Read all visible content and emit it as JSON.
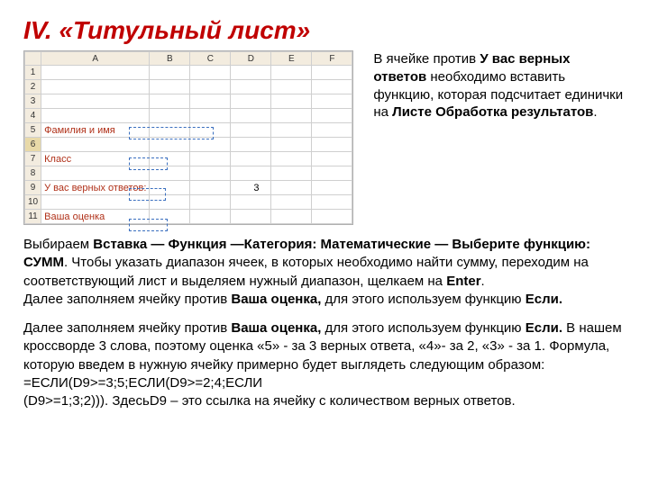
{
  "title": "IV.  «Титульный лист»",
  "sheet": {
    "cols": [
      "",
      "A",
      "B",
      "C",
      "D",
      "E",
      "F"
    ],
    "rows": [
      "1",
      "2",
      "3",
      "4",
      "5",
      "6",
      "7",
      "8",
      "9",
      "10",
      "11"
    ],
    "selected_row": "6",
    "labels": {
      "r5": "Фамилия и имя",
      "r7": "Класс",
      "r9": "У вас верных ответов:",
      "r11": "Ваша оценка"
    },
    "d9_value": "3",
    "dash_boxes": [
      {
        "top_row": 5,
        "left_col": 3,
        "rows": 1,
        "cols": 2.1
      },
      {
        "top_row": 7,
        "left_col": 3,
        "rows": 1,
        "cols": 1
      },
      {
        "top_row": 9,
        "left_col": 3,
        "rows": 1,
        "cols": 0.95
      },
      {
        "top_row": 11,
        "left_col": 3,
        "rows": 1,
        "cols": 1
      }
    ]
  },
  "right_text": {
    "p1a": "В ячейке против ",
    "p1b": "У вас верных ответов",
    "p1c": " необходимо вставить функцию, которая подсчитает единички на ",
    "p1d": "Листе Обработка результатов",
    "p1e": "."
  },
  "para1": {
    "a": "Выбираем ",
    "b": "Вставка — Функция —Категория: Математические — Выберите функцию: СУММ",
    "c": ". Чтобы указать диапазон ячеек, в которых необходимо найти сумму, переходим на соответствующий лист и выделяем нужный диапазон, щелкаем на ",
    "d": "Enter",
    "e": ".",
    "f": "Далее заполняем ячейку против ",
    "g": "Ваша оценка,",
    "h": " для этого используем функцию ",
    "i": "Если."
  },
  "para2": {
    "a": "Далее заполняем ячейку против ",
    "b": "Ваша оценка,",
    "c": " для этого используем функцию ",
    "d": "Если.",
    "e": " В нашем кроссворде 3 слова, поэтому оценка «5» - за 3 верных ответа, «4»- за 2, «3» - за 1. Формула, которую введем в нужную ячейку примерно будет выглядеть следующим образом: =ЕСЛИ(D9>=3;5;ЕСЛИ(D9>=2;4;ЕСЛИ\n(D9>=1;3;2))). ЗдесьD9 – это ссылка на ячейку с количеством верных ответов."
  }
}
